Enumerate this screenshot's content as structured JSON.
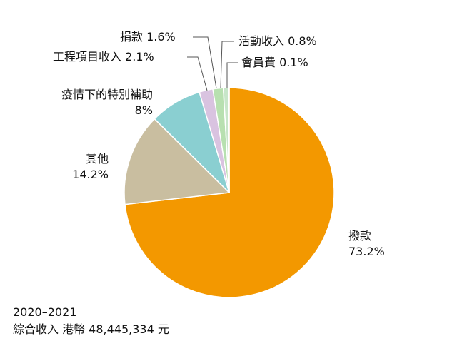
{
  "chart_data": {
    "type": "pie",
    "slices": [
      {
        "label": "撥款",
        "value": 73.2,
        "value_label": "73.2%",
        "color": "#F39800"
      },
      {
        "label": "其他",
        "value": 14.2,
        "value_label": "14.2%",
        "color": "#C9BEA0"
      },
      {
        "label": "疫情下的特別補助",
        "value": 8,
        "value_label": "8%",
        "color": "#8ACFD1"
      },
      {
        "label": "工程項目收入",
        "value": 2.1,
        "value_label": "2.1%",
        "color": "#D9C3E0"
      },
      {
        "label": "捐款",
        "value": 1.6,
        "value_label": "1.6%",
        "color": "#B8E0B0"
      },
      {
        "label": "活動收入",
        "value": 0.8,
        "value_label": "0.8%",
        "color": "#C8E6C9"
      },
      {
        "label": "會員費",
        "value": 0.1,
        "value_label": "0.1%",
        "color": "#F4B6C2"
      }
    ]
  },
  "footer": {
    "year": "2020–2021",
    "total": "綜合收入 港幣 48,445,334 元"
  }
}
